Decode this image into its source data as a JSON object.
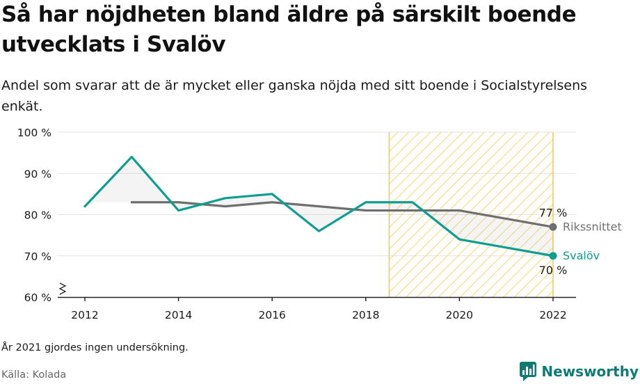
{
  "title": "Så har nöjdheten bland äldre på särskilt boende utvecklats i Svalöv",
  "subtitle": "Andel som svarar att de är mycket eller ganska nöjda med sitt boende i Socialstyrelsens enkät.",
  "note": "År 2021 gjordes ingen undersökning.",
  "source": "Källa: Kolada",
  "brand": "Newsworthy",
  "colors": {
    "svalov": "#0e9e91",
    "riks": "#6f6f6f",
    "highlight": "#f5c747"
  },
  "chart_data": {
    "type": "line",
    "ylim": [
      60,
      100
    ],
    "xlim": [
      2012,
      2022
    ],
    "y_ticks": [
      {
        "value": 60,
        "label": "60 %"
      },
      {
        "value": 70,
        "label": "70 %"
      },
      {
        "value": 80,
        "label": "80 %"
      },
      {
        "value": 90,
        "label": "90 %"
      },
      {
        "value": 100,
        "label": "100 %"
      }
    ],
    "x_ticks": [
      {
        "value": 2012,
        "label": "2012"
      },
      {
        "value": 2014,
        "label": "2014"
      },
      {
        "value": 2016,
        "label": "2016"
      },
      {
        "value": 2018,
        "label": "2018"
      },
      {
        "value": 2020,
        "label": "2020"
      },
      {
        "value": 2022,
        "label": "2022"
      }
    ],
    "highlight_range": [
      2018.5,
      2022
    ],
    "grid": true,
    "series": [
      {
        "name": "Svalöv",
        "x": [
          2012,
          2013,
          2014,
          2015,
          2016,
          2017,
          2018,
          2019,
          2020,
          2022
        ],
        "values": [
          82,
          94,
          81,
          84,
          85,
          76,
          83,
          83,
          74,
          70
        ],
        "end_label": "70 %"
      },
      {
        "name": "Rikssnittet",
        "x": [
          2013,
          2014,
          2015,
          2016,
          2017,
          2018,
          2019,
          2020,
          2022
        ],
        "values": [
          83,
          83,
          82,
          83,
          82,
          81,
          81,
          81,
          77
        ],
        "end_label": "77 %"
      }
    ]
  }
}
